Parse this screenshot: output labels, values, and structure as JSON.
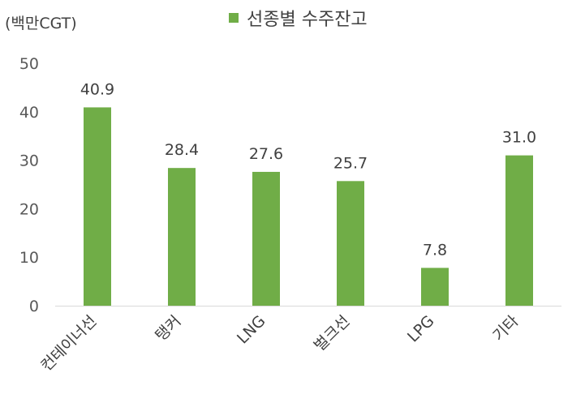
{
  "chart_data": {
    "type": "bar",
    "unit_label": "(백만CGT)",
    "categories": [
      "컨테이너선",
      "탱커",
      "LNG",
      "벌크선",
      "LPG",
      "기타"
    ],
    "series": [
      {
        "name": "선종별 수주잔고",
        "values": [
          40.9,
          28.4,
          27.6,
          25.7,
          7.8,
          31.0
        ],
        "color": "#70AD47"
      }
    ],
    "data_labels": [
      "40.9",
      "28.4",
      "27.6",
      "25.7",
      "7.8",
      "31.0"
    ],
    "y_ticks": [
      "0",
      "10",
      "20",
      "30",
      "40",
      "50"
    ],
    "ylim": [
      0,
      50
    ],
    "grid": false,
    "legend_position": "top-center"
  }
}
